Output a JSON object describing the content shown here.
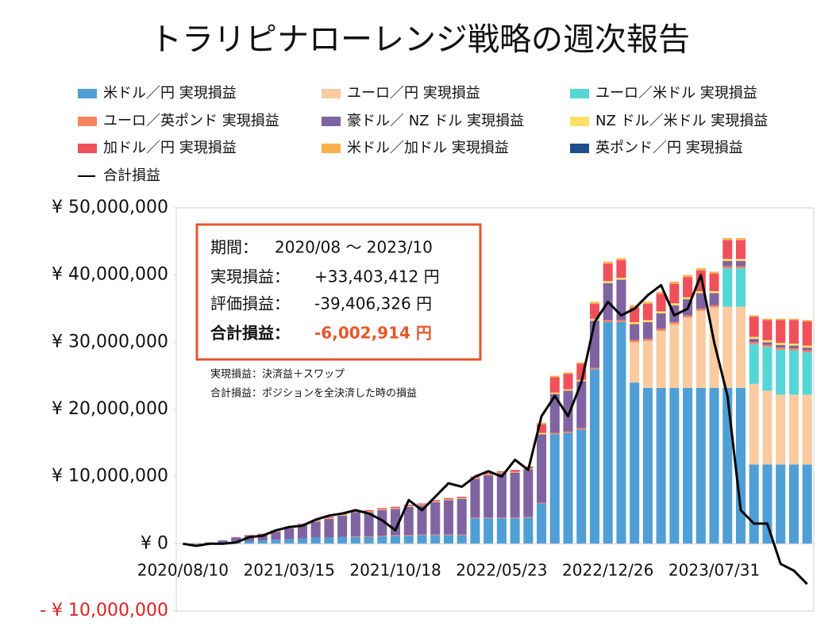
{
  "chart_data": {
    "type": "bar",
    "stacked": true,
    "title": "トラリピナローレンジ戦略の週次報告",
    "categories": [
      "2020/08/10",
      null,
      null,
      null,
      null,
      null,
      null,
      null,
      "2021/03/15",
      null,
      null,
      null,
      null,
      null,
      null,
      null,
      "2021/10/18",
      null,
      null,
      null,
      null,
      null,
      null,
      null,
      "2022/05/23",
      null,
      null,
      null,
      null,
      null,
      null,
      null,
      "2022/12/26",
      null,
      null,
      null,
      null,
      null,
      null,
      null,
      "2023/07/31",
      null,
      null,
      null,
      null,
      null,
      null,
      null
    ],
    "series": [
      {
        "name": "米ドル／円 実現損益",
        "color": "#4f9fd6",
        "values": [
          0,
          0,
          100000,
          200000,
          300000,
          400000,
          500000,
          600000,
          700000,
          800000,
          900000,
          900000,
          1000000,
          1000000,
          1000000,
          1100000,
          1200000,
          1200000,
          1300000,
          1300000,
          1300000,
          1300000,
          3800000,
          3800000,
          3800000,
          3800000,
          3900000,
          6000000,
          16300000,
          16500000,
          17000000,
          26000000,
          33000000,
          33000000,
          24000000,
          23200000,
          23200000,
          23200000,
          23200000,
          23200000,
          23200000,
          23200000,
          23200000,
          11800000,
          11800000,
          11800000,
          11800000,
          11800000
        ]
      },
      {
        "name": "ユーロ／円 実現損益",
        "color": "#f8cba0",
        "values": [
          0,
          0,
          0,
          0,
          0,
          0,
          0,
          0,
          0,
          0,
          0,
          0,
          0,
          0,
          0,
          0,
          0,
          0,
          0,
          0,
          0,
          0,
          0,
          0,
          0,
          0,
          0,
          0,
          0,
          0,
          0,
          0,
          0,
          0,
          6000000,
          7000000,
          8500000,
          9500000,
          10500000,
          11500000,
          12000000,
          12100000,
          12100000,
          12000000,
          11000000,
          10400000,
          10400000,
          10400000
        ]
      },
      {
        "name": "ユーロ／米ドル 実現損益",
        "color": "#55d6d6",
        "values": [
          0,
          0,
          0,
          0,
          0,
          0,
          0,
          0,
          0,
          0,
          0,
          0,
          0,
          0,
          0,
          0,
          0,
          0,
          0,
          0,
          0,
          0,
          0,
          0,
          0,
          0,
          0,
          0,
          0,
          0,
          0,
          0,
          0,
          0,
          0,
          0,
          0,
          0,
          0,
          0,
          0,
          5700000,
          5700000,
          5900000,
          6500000,
          6700000,
          6600000,
          6300000
        ]
      },
      {
        "name": "ユーロ／英ポンド 実現損益",
        "color": "#f4845f",
        "values": [
          0,
          0,
          0,
          0,
          0,
          0,
          0,
          0,
          0,
          0,
          0,
          0,
          0,
          100000,
          100000,
          100000,
          100000,
          100000,
          100000,
          100000,
          100000,
          100000,
          100000,
          100000,
          100000,
          100000,
          100000,
          100000,
          200000,
          200000,
          200000,
          200000,
          300000,
          300000,
          300000,
          300000,
          300000,
          300000,
          300000,
          300000,
          300000,
          300000,
          300000,
          300000,
          300000,
          300000,
          300000,
          300000
        ]
      },
      {
        "name": "豪ドル／ NZ ドル 実現損益",
        "color": "#8064a2",
        "values": [
          0,
          100000,
          100000,
          300000,
          600000,
          800000,
          900000,
          1200000,
          1600000,
          2000000,
          2400000,
          2800000,
          3200000,
          3600000,
          3600000,
          3800000,
          3900000,
          4200000,
          4300000,
          4800000,
          5100000,
          5300000,
          5800000,
          6300000,
          6600000,
          6700000,
          7100000,
          10200000,
          5800000,
          6100000,
          7000000,
          7000000,
          5500000,
          6000000,
          2400000,
          2500000,
          2300000,
          2500000,
          2400000,
          2300000,
          1800000,
          800000,
          800000,
          500000,
          400000,
          400000,
          400000,
          400000
        ]
      },
      {
        "name": "NZ ドル／米ドル 実現損益",
        "color": "#ffe066",
        "values": [
          0,
          0,
          0,
          0,
          0,
          0,
          0,
          100000,
          100000,
          100000,
          100000,
          100000,
          100000,
          100000,
          100000,
          100000,
          100000,
          100000,
          100000,
          100000,
          100000,
          100000,
          100000,
          100000,
          100000,
          100000,
          100000,
          200000,
          200000,
          200000,
          200000,
          300000,
          300000,
          300000,
          300000,
          300000,
          300000,
          300000,
          300000,
          300000,
          300000,
          300000,
          300000,
          300000,
          300000,
          300000,
          300000,
          300000
        ]
      },
      {
        "name": "加ドル／円 実現損益",
        "color": "#f0505a",
        "values": [
          0,
          0,
          0,
          0,
          100000,
          100000,
          100000,
          100000,
          100000,
          100000,
          100000,
          200000,
          200000,
          200000,
          200000,
          200000,
          200000,
          200000,
          200000,
          200000,
          200000,
          200000,
          200000,
          200000,
          200000,
          300000,
          300000,
          1300000,
          2300000,
          2300000,
          2400000,
          2200000,
          2600000,
          2600000,
          2200000,
          2400000,
          2600000,
          2900000,
          3000000,
          3100000,
          2600000,
          2800000,
          2800000,
          3000000,
          3000000,
          3400000,
          3500000,
          3600000
        ]
      },
      {
        "name": "米ドル／加ドル 実現損益",
        "color": "#f8b04c",
        "values": [
          0,
          0,
          0,
          0,
          0,
          0,
          0,
          0,
          0,
          0,
          0,
          0,
          0,
          0,
          0,
          0,
          0,
          0,
          0,
          0,
          0,
          0,
          0,
          0,
          0,
          0,
          0,
          200000,
          200000,
          200000,
          200000,
          300000,
          300000,
          300000,
          300000,
          300000,
          300000,
          300000,
          300000,
          300000,
          300000,
          300000,
          300000,
          200000,
          200000,
          200000,
          200000,
          200000
        ]
      },
      {
        "name": "英ポンド／円 実現損益",
        "color": "#1f4e8c",
        "values": [
          0,
          0,
          0,
          0,
          0,
          0,
          0,
          0,
          0,
          0,
          0,
          0,
          0,
          0,
          0,
          0,
          0,
          0,
          0,
          0,
          0,
          0,
          0,
          0,
          0,
          0,
          0,
          0,
          0,
          0,
          0,
          0,
          0,
          0,
          0,
          0,
          0,
          0,
          0,
          0,
          0,
          0,
          0,
          0,
          0,
          0,
          0,
          0
        ]
      },
      {
        "name": "合計損益",
        "type": "line",
        "color": "#000000",
        "values": [
          0,
          -300000,
          0,
          0,
          200000,
          1000000,
          1200000,
          2000000,
          2500000,
          2700000,
          3600000,
          4200000,
          4500000,
          5000000,
          4500000,
          3500000,
          2000000,
          6500000,
          5000000,
          7000000,
          9000000,
          8500000,
          10000000,
          10800000,
          10000000,
          12500000,
          11000000,
          19000000,
          22000000,
          19000000,
          24000000,
          33000000,
          36000000,
          34000000,
          35000000,
          37000000,
          38500000,
          34000000,
          35000000,
          40000000,
          30000000,
          22000000,
          5000000,
          3000000,
          3000000,
          -3000000,
          -4000000,
          -6000000
        ]
      }
    ],
    "ylim": [
      -10000000,
      50000000
    ],
    "yticks": [
      {
        "value": -10000000,
        "label": "- ¥ 10,000,000"
      },
      {
        "value": 0,
        "label": "¥ 0"
      },
      {
        "value": 10000000,
        "label": "¥ 10,000,000"
      },
      {
        "value": 20000000,
        "label": "¥ 20,000,000"
      },
      {
        "value": 30000000,
        "label": "¥ 30,000,000"
      },
      {
        "value": 40000000,
        "label": "¥ 40,000,000"
      },
      {
        "value": 50000000,
        "label": "¥ 50,000,000"
      }
    ],
    "negative_tick_color": "#e02020",
    "grid": false,
    "legend": "top",
    "summary": [
      {
        "label": "期間：",
        "value": "2020/08 ～ 2023/10"
      },
      {
        "label": "実現損益：",
        "value": "+33,403,412 円"
      },
      {
        "label": "評価損益：",
        "value": "-39,406,326 円"
      },
      {
        "label": "合計損益：",
        "value": "-6,002,914 円"
      }
    ],
    "notes": [
      "実現損益：決済益＋スワップ",
      "合計損益：ポジションを全決済した時の損益"
    ]
  }
}
